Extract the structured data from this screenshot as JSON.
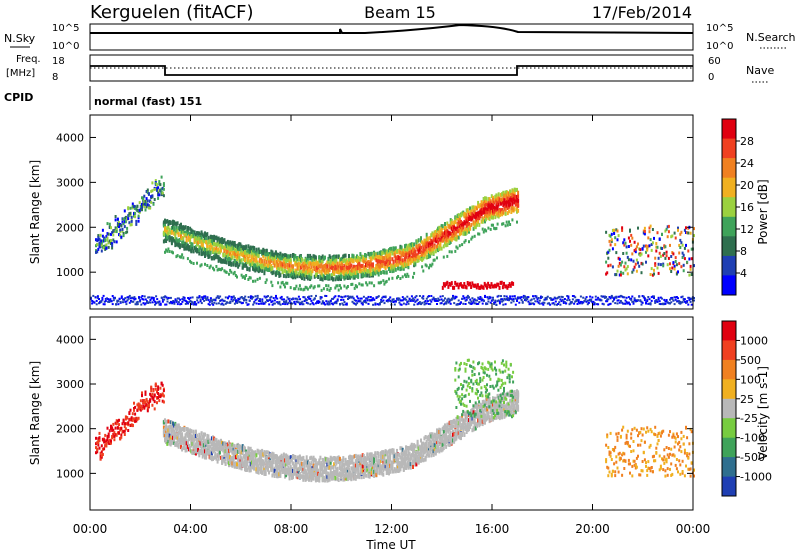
{
  "header": {
    "station": "Kerguelen (fitACF)",
    "beam": "Beam 15",
    "date": "17/Feb/2014"
  },
  "top_strips": {
    "nsky": {
      "label": "N.Sky",
      "ticks": [
        "10^5",
        "10^0"
      ]
    },
    "nsearch": {
      "label": "N.Search",
      "ticks": [
        "10^5",
        "10^0"
      ]
    },
    "freq": {
      "label": "Freq.",
      "unit": "[MHz]",
      "ticks": [
        "18",
        "8"
      ]
    },
    "nave": {
      "label": "Nave",
      "ticks": [
        "60",
        "0"
      ]
    },
    "cpid": {
      "label": "CPID",
      "value": "normal (fast) 151"
    }
  },
  "chart_data": [
    {
      "type": "heatmap",
      "name": "power",
      "xlabel": "Time UT",
      "ylabel": "Slant Range [km]",
      "x_ticks": [
        "00:00",
        "04:00",
        "08:00",
        "12:00",
        "16:00",
        "20:00",
        "00:00"
      ],
      "y_ticks": [
        "1000",
        "2000",
        "3000",
        "4000"
      ],
      "xlim_hours": [
        0,
        24
      ],
      "ylim_km": [
        180,
        4500
      ],
      "colorbar": {
        "label": "Power [dB]",
        "ticks": [
          "28",
          "24",
          "20",
          "16",
          "12",
          "8",
          "4"
        ],
        "colors": [
          "#0000ff",
          "#1f3fb3",
          "#2f6f4f",
          "#3fa35a",
          "#9bd13f",
          "#f0b020",
          "#f08020",
          "#f04020",
          "#e00010"
        ]
      },
      "features": [
        {
          "desc": "main echo band",
          "start_hour": 2.9,
          "end_hour": 17,
          "range_km_start": 1900,
          "range_km_min": 1050,
          "range_km_end": 1800,
          "peak_power_dB": 28
        },
        {
          "desc": "early arc",
          "start_hour": 0.2,
          "end_hour": 2.9,
          "range_km_start": 1500,
          "range_km_end": 2900
        },
        {
          "desc": "near-range band",
          "start_hour": 0,
          "end_hour": 24,
          "range_km": 350,
          "power_dB": 4
        },
        {
          "desc": "late patch",
          "start_hour": 14,
          "end_hour": 16.8,
          "range_km": 600,
          "power_dB": 26
        },
        {
          "desc": "evening echoes",
          "start_hour": 20.5,
          "end_hour": 24,
          "range_km_start": 1000,
          "range_km_end": 2000
        }
      ]
    },
    {
      "type": "heatmap",
      "name": "velocity",
      "xlabel": "Time UT",
      "ylabel": "Slant Range [km]",
      "x_ticks": [
        "00:00",
        "04:00",
        "08:00",
        "12:00",
        "16:00",
        "20:00",
        "00:00"
      ],
      "y_ticks": [
        "1000",
        "2000",
        "3000",
        "4000"
      ],
      "xlim_hours": [
        0,
        24
      ],
      "ylim_km": [
        180,
        4500
      ],
      "colorbar": {
        "label": "Velocity [m s-1]",
        "ticks": [
          "1000",
          "500",
          "100",
          "25",
          "-25",
          "-100",
          "-500",
          "-1000"
        ],
        "colors": [
          "#1f3fb3",
          "#2f6f8f",
          "#3fa35a",
          "#77cc40",
          "#b8b8b8",
          "#f0b020",
          "#f08020",
          "#f04020",
          "#e00010"
        ]
      },
      "features": [
        {
          "desc": "ground scatter band",
          "start_hour": 2.9,
          "end_hour": 17,
          "velocity_ms": 0
        },
        {
          "desc": "early arc",
          "start_hour": 0.2,
          "end_hour": 2.9,
          "velocity_ms": -800
        },
        {
          "desc": "late high-range patch",
          "start_hour": 14.5,
          "end_hour": 16.8,
          "velocity_ms": 200
        },
        {
          "desc": "evening echoes",
          "start_hour": 20.5,
          "end_hour": 24,
          "velocity_ms": -150
        }
      ]
    }
  ]
}
